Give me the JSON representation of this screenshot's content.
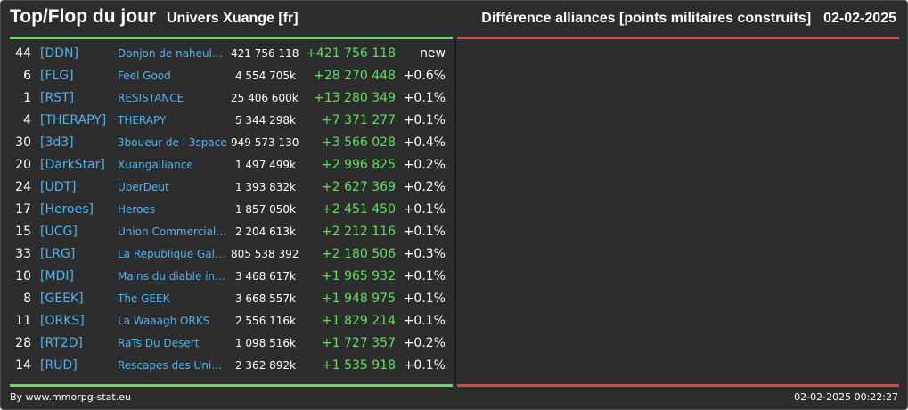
{
  "header": {
    "title": "Top/Flop du jour",
    "universe": "Univers Xuange [fr]",
    "category": "Différence alliances [points militaires construits]",
    "date": "02-02-2025"
  },
  "colors": {
    "background": "#2d2d2d",
    "accent_green": "#5fe05f",
    "accent_red": "#e0483f",
    "link_blue": "#4fb3f0",
    "text": "#ffffff"
  },
  "rows": [
    {
      "rank": "44",
      "tag": "[DDN]",
      "name": "Donjon de naheulbeuk",
      "points": "421 756 118",
      "diff": "+421 756 118",
      "pct": "new"
    },
    {
      "rank": "6",
      "tag": "[FLG]",
      "name": "Feel Good",
      "points": "4 554 705k",
      "diff": "+28 270 448",
      "pct": "+0.6%"
    },
    {
      "rank": "1",
      "tag": "[RST]",
      "name": "RESISTANCE",
      "points": "25 406 600k",
      "diff": "+13 280 349",
      "pct": "+0.1%"
    },
    {
      "rank": "4",
      "tag": "[THERAPY]",
      "name": "THERAPY",
      "points": "5 344 298k",
      "diff": "+7 371 277",
      "pct": "+0.1%"
    },
    {
      "rank": "30",
      "tag": "[3d3]",
      "name": "3boueur de l 3space",
      "points": "949 573 130",
      "diff": "+3 566 028",
      "pct": "+0.4%"
    },
    {
      "rank": "20",
      "tag": "[DarkStar]",
      "name": "Xuangalliance",
      "points": "1 497 499k",
      "diff": "+2 996 825",
      "pct": "+0.2%"
    },
    {
      "rank": "24",
      "tag": "[UDT]",
      "name": "UberDeut",
      "points": "1 393 832k",
      "diff": "+2 627 369",
      "pct": "+0.2%"
    },
    {
      "rank": "17",
      "tag": "[Heroes]",
      "name": "Heroes",
      "points": "1 857 050k",
      "diff": "+2 451 450",
      "pct": "+0.1%"
    },
    {
      "rank": "15",
      "tag": "[UCG]",
      "name": "Union Commerciale Galactique",
      "points": "2 204 613k",
      "diff": "+2 212 116",
      "pct": "+0.1%"
    },
    {
      "rank": "33",
      "tag": "[LRG]",
      "name": "La Republique Galactique",
      "points": "805 538 392",
      "diff": "+2 180 506",
      "pct": "+0.3%"
    },
    {
      "rank": "10",
      "tag": "[MDI]",
      "name": "Mains du diable incorporated",
      "points": "3 468 617k",
      "diff": "+1 965 932",
      "pct": "+0.1%"
    },
    {
      "rank": "8",
      "tag": "[GEEK]",
      "name": "The GEEK",
      "points": "3 668 557k",
      "diff": "+1 948 975",
      "pct": "+0.1%"
    },
    {
      "rank": "11",
      "tag": "[ORKS]",
      "name": "La Waaagh ORKS",
      "points": "2 556 116k",
      "diff": "+1 829 214",
      "pct": "+0.1%"
    },
    {
      "rank": "28",
      "tag": "[RT2D]",
      "name": "RaTs Du Desert",
      "points": "1 098 516k",
      "diff": "+1 727 357",
      "pct": "+0.2%"
    },
    {
      "rank": "14",
      "tag": "[RUD]",
      "name": "Rescapes des Univers",
      "points": "2 362 892k",
      "diff": "+1 535 918",
      "pct": "+0.1%"
    }
  ],
  "footer": {
    "credit": "By www.mmorpg-stat.eu",
    "timestamp": "02-02-2025 00:22:27"
  }
}
